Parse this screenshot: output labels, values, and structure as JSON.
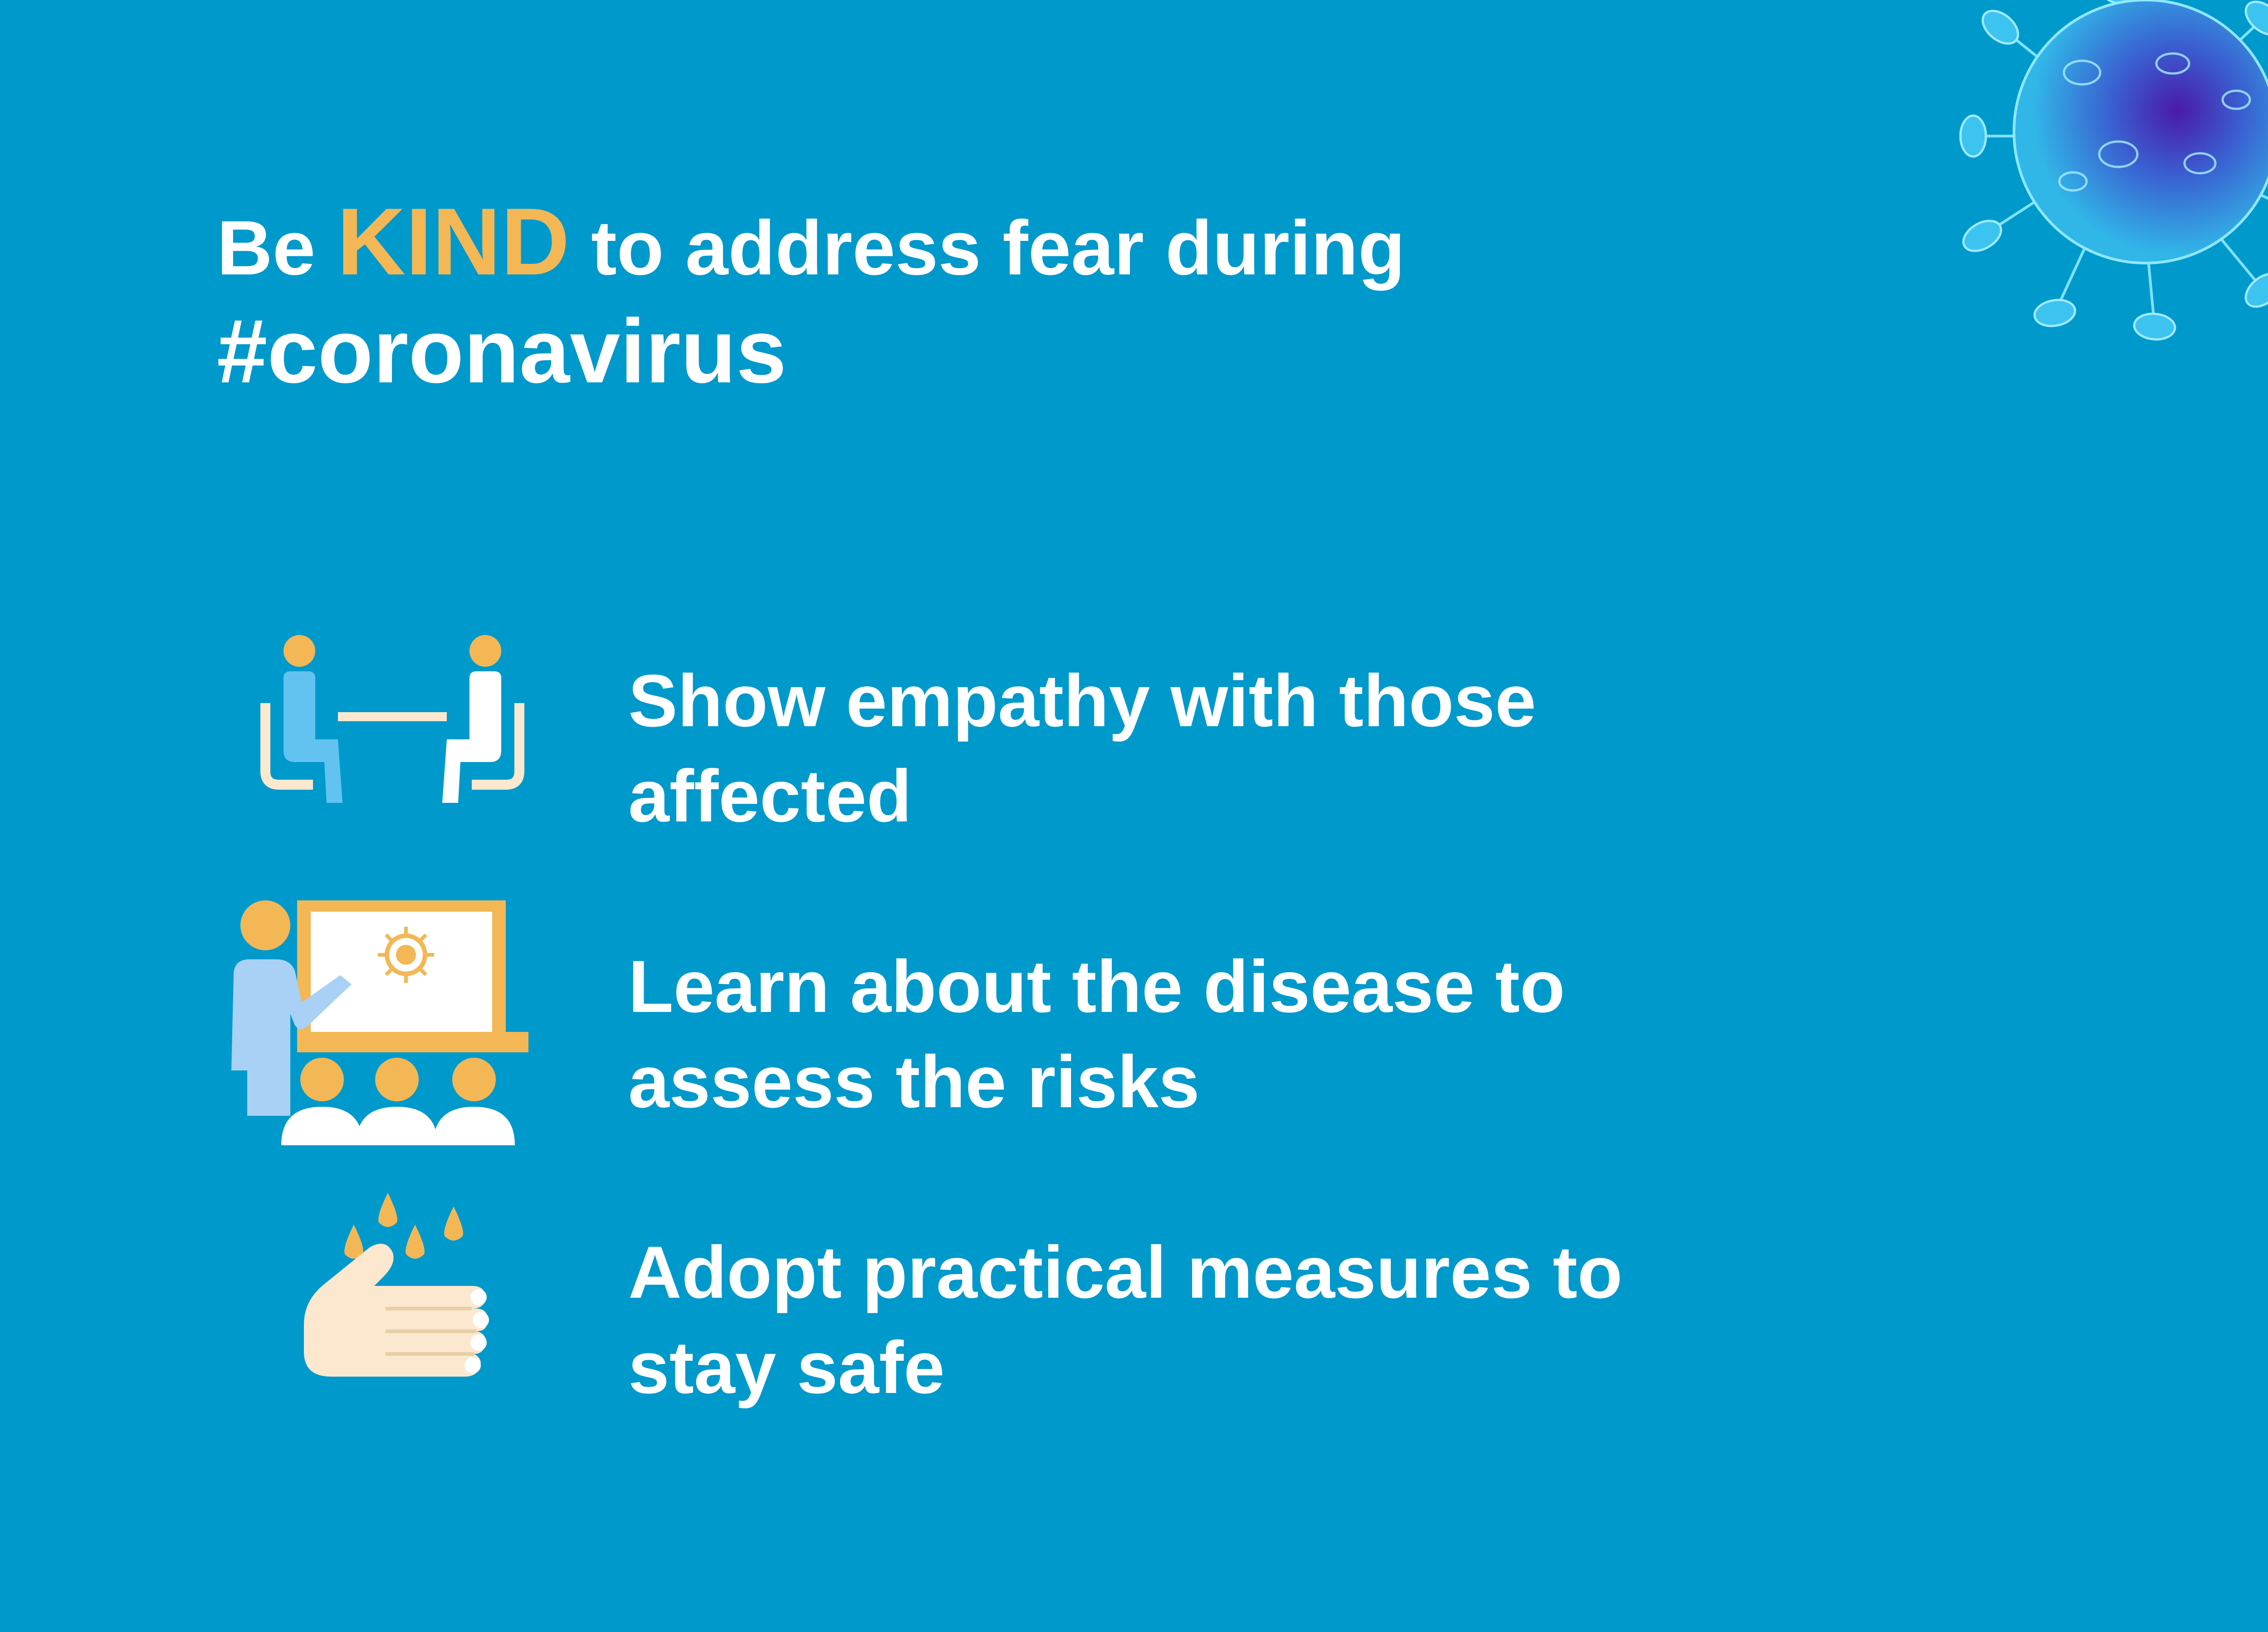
{
  "headline": {
    "prefix": "Be",
    "highlight": "KIND",
    "suffix": "to address fear during",
    "hashtag": "#coronavirus"
  },
  "items": [
    {
      "icon": "two-people-talking-icon",
      "text": "Show empathy with those affected"
    },
    {
      "icon": "presentation-teacher-icon",
      "text": "Learn about the disease to assess the risks"
    },
    {
      "icon": "handwashing-icon",
      "text": "Adopt practical measures to stay safe"
    }
  ],
  "colors": {
    "background": "#0099cc",
    "accent": "#f3b755",
    "light_blue": "#62c3f1",
    "cream": "#fbe8cf",
    "white": "#ffffff"
  }
}
